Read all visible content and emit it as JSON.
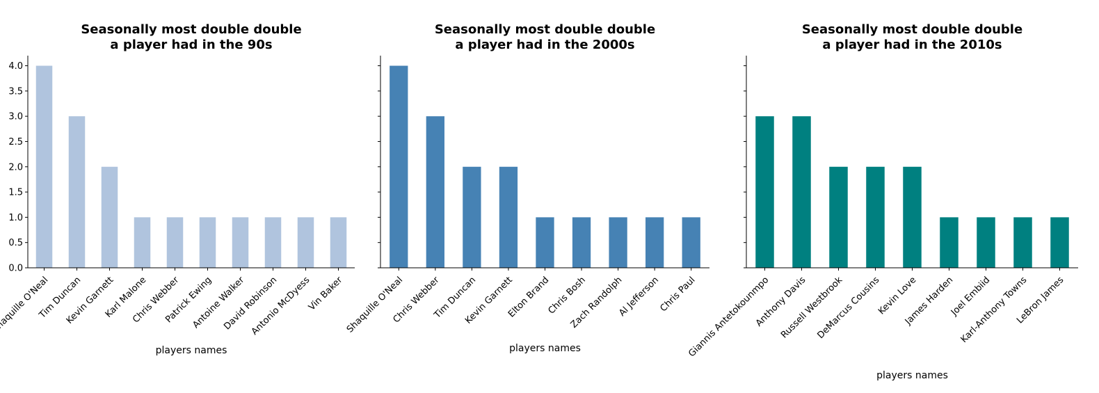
{
  "chart_data": [
    {
      "type": "bar",
      "title_lines": [
        "Seasonally most double double",
        "a player had in the 90s"
      ],
      "xlabel": "players names",
      "ylabel": "",
      "ylim": [
        0,
        4.2
      ],
      "yticks": [
        "0.0",
        "0.5",
        "1.0",
        "1.5",
        "2.0",
        "2.5",
        "3.0",
        "3.5",
        "4.0"
      ],
      "show_ytick_labels": true,
      "color": "#b0c4de",
      "categories": [
        "Shaquille O'Neal",
        "Tim Duncan",
        "Kevin Garnett",
        "Karl Malone",
        "Chris Webber",
        "Patrick Ewing",
        "Antoine Walker",
        "David Robinson",
        "Antonio McDyess",
        "Vin Baker"
      ],
      "values": [
        4,
        3,
        2,
        1,
        1,
        1,
        1,
        1,
        1,
        1
      ],
      "grid": false
    },
    {
      "type": "bar",
      "title_lines": [
        "Seasonally most double double",
        "a player had in the 2000s"
      ],
      "xlabel": "players names",
      "ylabel": "",
      "ylim": [
        0,
        4.2
      ],
      "yticks": [
        "0.0",
        "0.5",
        "1.0",
        "1.5",
        "2.0",
        "2.5",
        "3.0",
        "3.5",
        "4.0"
      ],
      "show_ytick_labels": false,
      "color": "#4682b4",
      "categories": [
        "Shaquille O'Neal",
        "Chris Webber",
        "Tim Duncan",
        "Kevin Garnett",
        "Elton Brand",
        "Chris Bosh",
        "Zach Randolph",
        "Al Jefferson",
        "Chris Paul"
      ],
      "values": [
        4,
        3,
        2,
        2,
        1,
        1,
        1,
        1,
        1
      ],
      "grid": false
    },
    {
      "type": "bar",
      "title_lines": [
        "Seasonally most double double",
        "a player had in the 2010s"
      ],
      "xlabel": "players names",
      "ylabel": "",
      "ylim": [
        0,
        4.2
      ],
      "yticks": [
        "0.0",
        "0.5",
        "1.0",
        "1.5",
        "2.0",
        "2.5",
        "3.0",
        "3.5",
        "4.0"
      ],
      "show_ytick_labels": false,
      "color": "#008080",
      "categories": [
        "Giannis Antetokounmpo",
        "Anthony Davis",
        "Russell Westbrook",
        "DeMarcus Cousins",
        "Kevin Love",
        "James Harden",
        "Joel Embiid",
        "Karl-Anthony Towns",
        "LeBron James"
      ],
      "values": [
        3,
        3,
        2,
        2,
        2,
        1,
        1,
        1,
        1
      ],
      "grid": false
    }
  ]
}
